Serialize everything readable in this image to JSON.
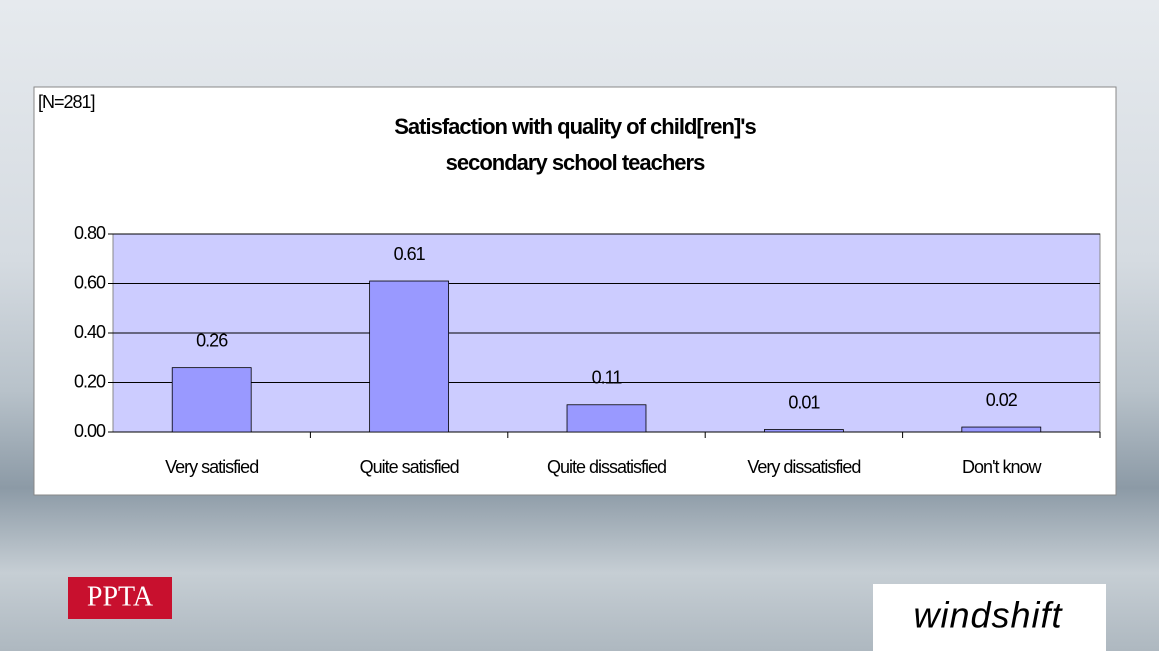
{
  "chart_data": {
    "type": "bar",
    "title": "Satisfaction with quality of child[ren]'s",
    "subtitle": "secondary school teachers",
    "note": "[N=281]",
    "categories": [
      "Very satisfied",
      "Quite satisfied",
      "Quite dissatisfied",
      "Very dissatisfied",
      "Don't know"
    ],
    "values": [
      0.26,
      0.61,
      0.11,
      0.01,
      0.02
    ],
    "value_labels": [
      "0.26",
      "0.61",
      "0.11",
      "0.01",
      "0.02"
    ],
    "color": "#9999ff",
    "ylim": [
      0,
      0.8
    ],
    "yticks": [
      {
        "value": 0,
        "label": "0.00"
      },
      {
        "value": 0.2,
        "label": "0.20"
      },
      {
        "value": 0.4,
        "label": "0.40"
      },
      {
        "value": 0.6,
        "label": "0.60"
      },
      {
        "value": 0.8,
        "label": "0.80"
      }
    ],
    "grid": true
  },
  "logos": {
    "left": "PPTA",
    "right": "windshift"
  }
}
